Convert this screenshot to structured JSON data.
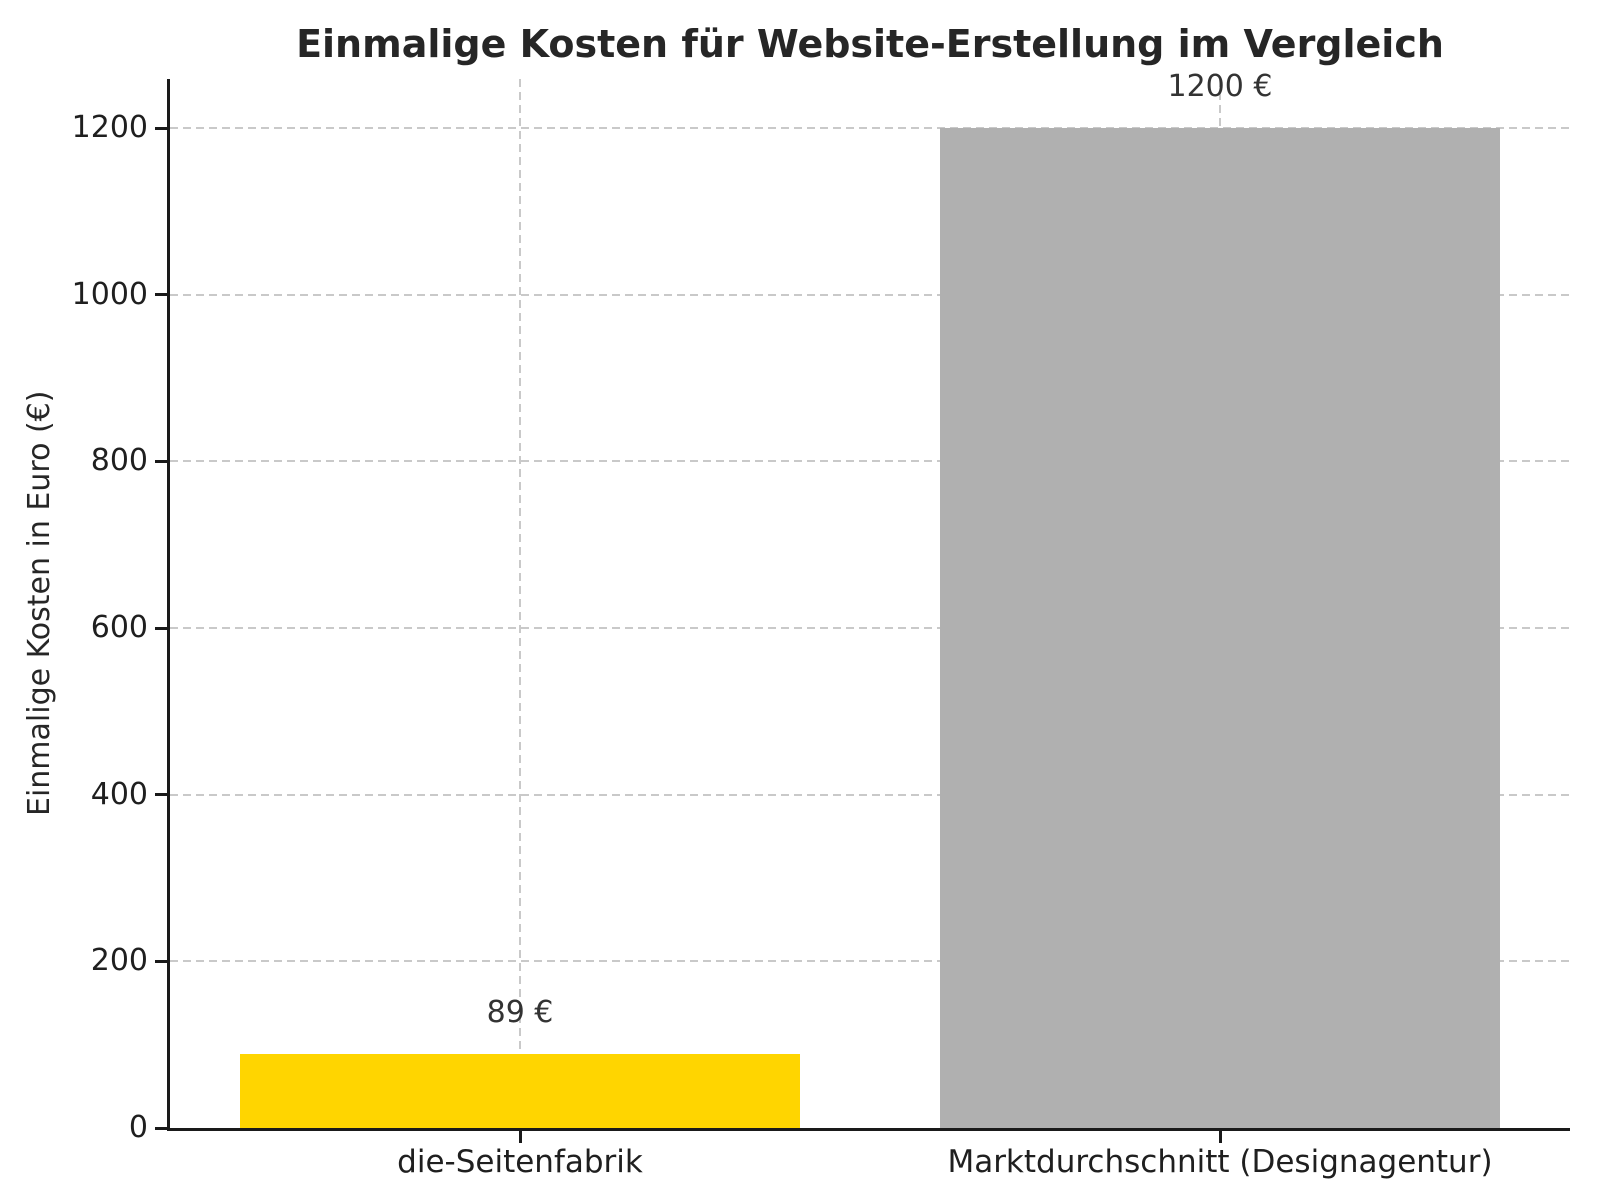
{
  "chart_data": {
    "type": "bar",
    "title": "Einmalige Kosten für Website-Erstellung im Vergleich",
    "categories": [
      "die-Seitenfabrik",
      "Marktdurchschnitt (Designagentur)"
    ],
    "values": [
      89,
      1200
    ],
    "value_labels": [
      "89 €",
      "1200 €"
    ],
    "bar_colors": [
      "#FFD500",
      "#B0B0B0"
    ],
    "xlabel": "",
    "ylabel": "Einmalige Kosten in Euro (€)",
    "yticks": [
      0,
      200,
      400,
      600,
      800,
      1000,
      1200
    ],
    "ylim": [
      0,
      1260
    ],
    "bar_width_fraction": 0.8,
    "grid": {
      "horizontal": true,
      "vertical": true,
      "style": "dashed",
      "color": "#c9c9c9"
    },
    "legend_position": "none"
  },
  "colors": {
    "background": "#ffffff",
    "spine": "#1a1a1a",
    "tick_text": "#1f1f1f",
    "title_text": "#262626",
    "value_label_text": "#333333"
  }
}
